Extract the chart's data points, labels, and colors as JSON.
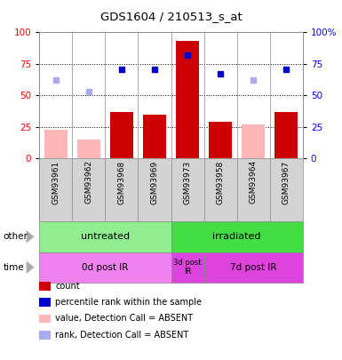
{
  "title": "GDS1604 / 210513_s_at",
  "samples": [
    "GSM93961",
    "GSM93962",
    "GSM93968",
    "GSM93969",
    "GSM93973",
    "GSM93958",
    "GSM93964",
    "GSM93967"
  ],
  "count_values": [
    0,
    0,
    37,
    35,
    93,
    29,
    0,
    37
  ],
  "count_absent": [
    23,
    15,
    0,
    0,
    0,
    0,
    27,
    0
  ],
  "rank_values": [
    0,
    0,
    71,
    71,
    82,
    67,
    0,
    71
  ],
  "rank_absent": [
    62,
    53,
    0,
    0,
    0,
    0,
    62,
    0
  ],
  "other_groups": [
    {
      "label": "untreated",
      "start": 0,
      "end": 4,
      "color": "#90ee90"
    },
    {
      "label": "irradiated",
      "start": 4,
      "end": 8,
      "color": "#44dd44"
    }
  ],
  "time_groups": [
    {
      "label": "0d post IR",
      "start": 0,
      "end": 4,
      "color": "#ee82ee"
    },
    {
      "label": "3d post\nIR",
      "start": 4,
      "end": 5,
      "color": "#dd44dd"
    },
    {
      "label": "7d post IR",
      "start": 5,
      "end": 8,
      "color": "#dd44dd"
    }
  ],
  "bar_color": "#cc0000",
  "bar_absent_color": "#ffb6b6",
  "rank_color": "#0000cc",
  "rank_absent_color": "#aaaaee",
  "yticks": [
    0,
    25,
    50,
    75,
    100
  ],
  "legend_items": [
    {
      "color": "#cc0000",
      "label": "count"
    },
    {
      "color": "#0000cc",
      "label": "percentile rank within the sample"
    },
    {
      "color": "#ffb6b6",
      "label": "value, Detection Call = ABSENT"
    },
    {
      "color": "#aaaaee",
      "label": "rank, Detection Call = ABSENT"
    }
  ]
}
